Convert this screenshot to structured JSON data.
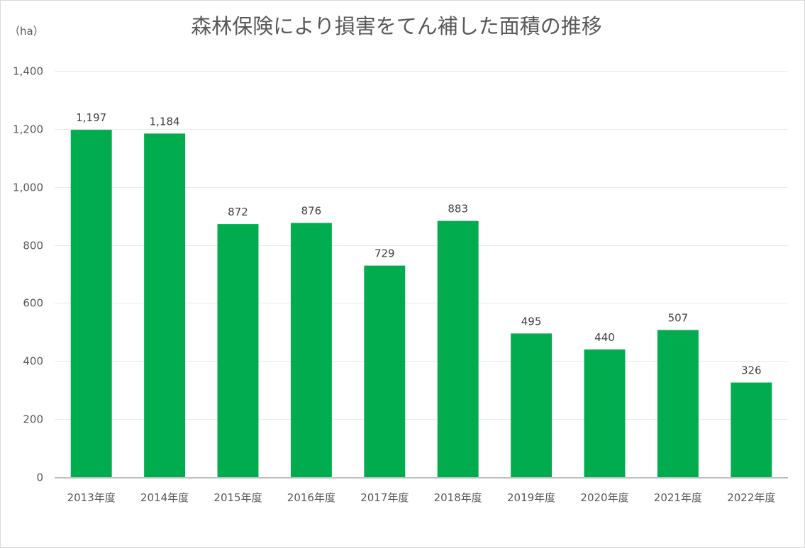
{
  "chart_data": {
    "type": "bar",
    "title": "森林保険により損害をてん補した面積の推移",
    "ylabel": "（ha）",
    "xlabel": "",
    "categories": [
      "2013年度",
      "2014年度",
      "2015年度",
      "2016年度",
      "2017年度",
      "2018年度",
      "2019年度",
      "2020年度",
      "2021年度",
      "2022年度"
    ],
    "values": [
      1197,
      1184,
      872,
      876,
      729,
      883,
      495,
      440,
      507,
      326
    ],
    "data_labels": [
      "1,197",
      "1,184",
      "872",
      "876",
      "729",
      "883",
      "495",
      "440",
      "507",
      "326"
    ],
    "yticks": [
      0,
      200,
      400,
      600,
      800,
      1000,
      1200,
      1400
    ],
    "ytick_labels": [
      "0",
      "200",
      "400",
      "600",
      "800",
      "1,000",
      "1,200",
      "1,400"
    ],
    "ylim": [
      0,
      1400
    ],
    "grid": true,
    "legend": "none",
    "bar_color": "#00ac4e",
    "grid_color": "#e9e9e9",
    "axis_color": "#bfbfbf"
  }
}
